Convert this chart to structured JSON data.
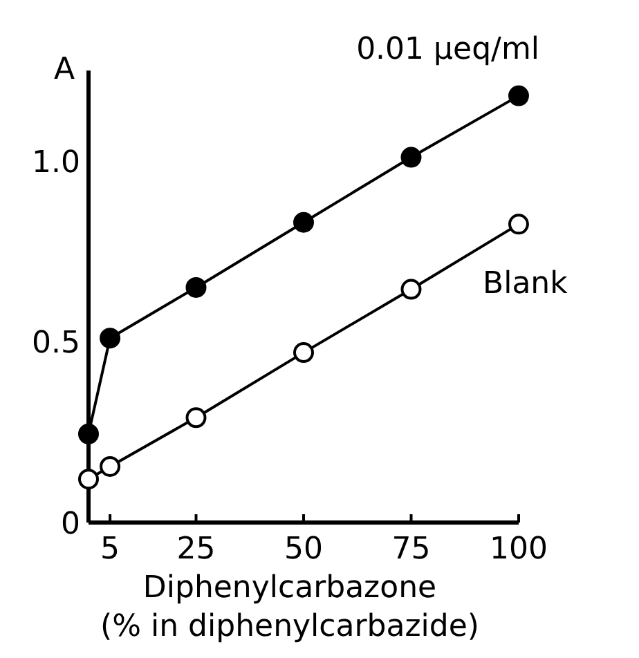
{
  "chart_data": {
    "type": "line",
    "xlabel": "Diphenylcarbazone\n(% in diphenylcarbazide)",
    "ylabel": "A",
    "x": [
      0,
      5,
      25,
      50,
      75,
      100
    ],
    "xlim": [
      0,
      100
    ],
    "xticks": [
      5,
      25,
      50,
      75,
      100
    ],
    "ylim": [
      0,
      1.25
    ],
    "yticks": [
      0,
      0.5,
      {
        "value": 1,
        "label": "1.0"
      }
    ],
    "grid": false,
    "marker": "circle",
    "line_style": "solid",
    "series": [
      {
        "name": "0.01 μeq/ml",
        "color": "#000000",
        "values": [
          0.245,
          0.51,
          0.65,
          0.83,
          1.01,
          1.18
        ]
      },
      {
        "name": "Blank",
        "color": "#000000",
        "values": [
          0.12,
          0.155,
          0.29,
          0.47,
          0.645,
          0.825
        ]
      }
    ]
  }
}
